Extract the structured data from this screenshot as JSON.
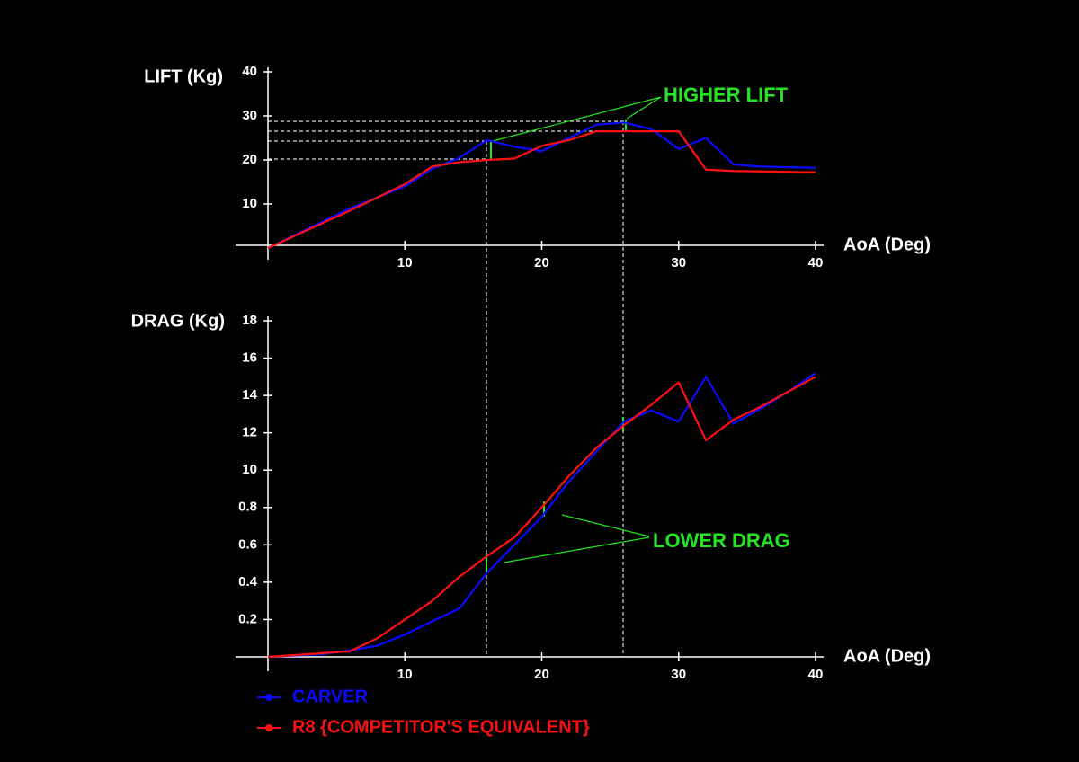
{
  "chart_data": [
    {
      "type": "line",
      "y_label": "LIFT (Kg)",
      "x_label": "AoA (Deg)",
      "xlim": [
        0,
        40
      ],
      "xticks": [
        10,
        20,
        30,
        40
      ],
      "ylim": [
        0,
        40
      ],
      "yticks": [
        10,
        20,
        30,
        40
      ],
      "annotation": "HIGHER LIFT",
      "x": [
        0,
        6,
        10,
        12,
        14,
        16,
        18,
        20,
        22,
        24,
        26,
        28,
        30,
        32,
        34,
        36,
        40
      ],
      "series": [
        {
          "name": "CARVER",
          "color": "#0a0aff",
          "values": [
            0,
            9,
            14,
            18,
            20.5,
            24.5,
            23,
            22,
            25,
            28,
            28.5,
            27,
            22.5,
            25,
            19,
            18.5,
            18.2
          ]
        },
        {
          "name": "R8 {COMPETITOR'S EQUIVALENT}",
          "color": "#ff1010",
          "values": [
            0,
            8.5,
            14.5,
            18.5,
            19.5,
            20,
            20.3,
            23.2,
            24.5,
            26.5,
            26.5,
            26.5,
            26.5,
            17.8,
            17.5,
            17.4,
            17.2
          ]
        }
      ]
    },
    {
      "type": "line",
      "y_label": "DRAG (Kg)",
      "x_label": "AoA (Deg)",
      "xlim": [
        0,
        40
      ],
      "xticks": [
        10,
        20,
        30,
        40
      ],
      "ylim": [
        0,
        18
      ],
      "yticks": [
        {
          "value": 2,
          "label": "0.2"
        },
        {
          "value": 4,
          "label": "0.4"
        },
        {
          "value": 6,
          "label": "0.6"
        },
        {
          "value": 8,
          "label": "0.8"
        },
        10,
        12,
        14,
        16,
        18
      ],
      "annotation": "LOWER DRAG",
      "x": [
        0,
        4,
        6,
        8,
        10,
        12,
        14,
        16,
        18,
        20,
        22,
        24,
        26,
        28,
        30,
        32,
        34,
        36,
        38,
        40
      ],
      "series": [
        {
          "color": "#0a0aff",
          "values": [
            0,
            0.15,
            0.35,
            0.6,
            1.2,
            1.9,
            2.6,
            4.5,
            6,
            7.5,
            9.4,
            11,
            12.6,
            13.2,
            12.6,
            15,
            12.5,
            13.3,
            14.2,
            15.2
          ]
        },
        {
          "color": "#ff1010",
          "values": [
            0,
            0.2,
            0.3,
            1,
            2,
            3,
            4.3,
            5.4,
            6.4,
            8,
            9.7,
            11.2,
            12.4,
            13.5,
            14.7,
            11.6,
            12.7,
            13.4,
            14.2,
            15
          ]
        }
      ]
    }
  ]
}
